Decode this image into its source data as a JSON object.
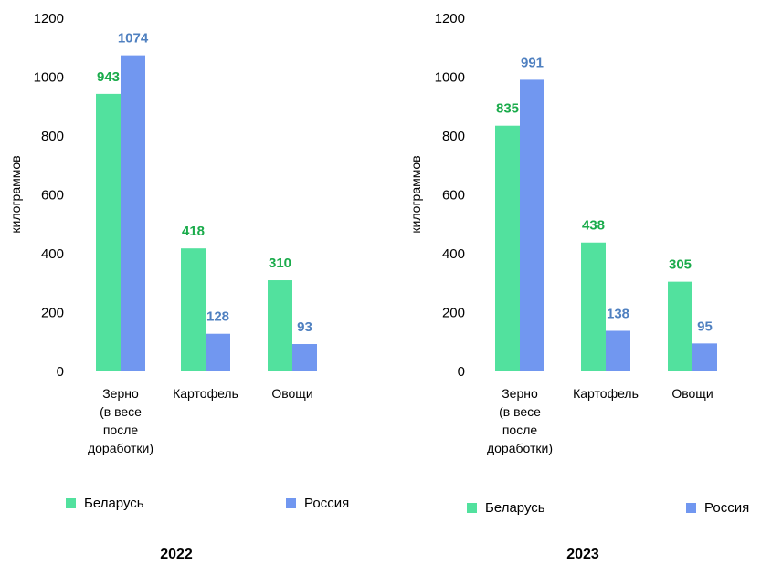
{
  "colors": {
    "belarus": "#52e19e",
    "russia": "#7197f0",
    "belarus_label": "#1aab4b",
    "russia_label": "#4f80c0"
  },
  "chart_data": [
    {
      "type": "bar",
      "title": "2022",
      "ylabel": "килограммов",
      "ylim": [
        0,
        1200
      ],
      "yticks": [
        0,
        200,
        400,
        600,
        800,
        1000,
        1200
      ],
      "categories": [
        [
          "Зерно",
          "(в весе",
          "после",
          "доработки)"
        ],
        [
          "Картофель"
        ],
        [
          "Овощи"
        ]
      ],
      "series": [
        {
          "name": "Беларусь",
          "values": [
            943,
            418,
            310
          ]
        },
        {
          "name": "Россия",
          "values": [
            1074,
            128,
            93
          ]
        }
      ],
      "legend_position": "bottom"
    },
    {
      "type": "bar",
      "title": "2023",
      "ylabel": "килограммов",
      "ylim": [
        0,
        1200
      ],
      "yticks": [
        0,
        200,
        400,
        600,
        800,
        1000,
        1200
      ],
      "categories": [
        [
          "Зерно",
          "(в весе",
          "после",
          "доработки)"
        ],
        [
          "Картофель"
        ],
        [
          "Овощи"
        ]
      ],
      "series": [
        {
          "name": "Беларусь",
          "values": [
            835,
            438,
            305
          ]
        },
        {
          "name": "Россия",
          "values": [
            991,
            138,
            95
          ]
        }
      ],
      "legend_position": "bottom"
    }
  ]
}
